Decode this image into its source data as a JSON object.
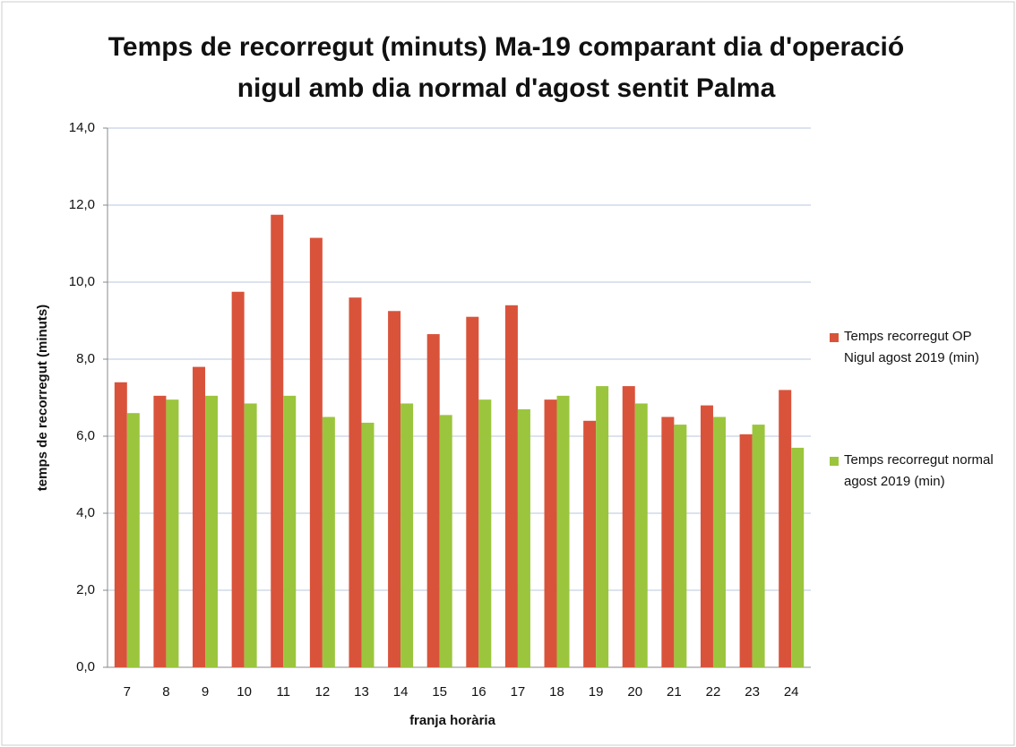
{
  "chart_data": {
    "type": "bar",
    "title": "Temps de recorregut (minuts) Ma-19 comparant dia d'operació nigul amb dia normal d'agost sentit Palma",
    "x_label": "franja horària",
    "y_label": "temps de recorregut (minuts)",
    "categories": [
      "7",
      "8",
      "9",
      "10",
      "11",
      "12",
      "13",
      "14",
      "15",
      "16",
      "17",
      "18",
      "19",
      "20",
      "21",
      "22",
      "23",
      "24"
    ],
    "series": [
      {
        "name": "Temps recorregut OP Nigul agost 2019 (min)",
        "color": "#d9533b",
        "values": [
          7.4,
          7.05,
          7.8,
          9.75,
          11.75,
          11.15,
          9.6,
          9.25,
          8.65,
          9.1,
          9.4,
          6.95,
          6.4,
          7.3,
          6.5,
          6.8,
          6.05,
          7.2
        ]
      },
      {
        "name": "Temps recorregut normal agost 2019 (min)",
        "color": "#9bc53d",
        "values": [
          6.6,
          6.95,
          7.05,
          6.85,
          7.05,
          6.5,
          6.35,
          6.85,
          6.55,
          6.95,
          6.7,
          7.05,
          7.3,
          6.85,
          6.3,
          6.5,
          6.3,
          5.7
        ]
      }
    ],
    "ylim": [
      0,
      14
    ],
    "yticks": [
      {
        "value": 0,
        "label": "0,0"
      },
      {
        "value": 2,
        "label": "2,0"
      },
      {
        "value": 4,
        "label": "4,0"
      },
      {
        "value": 6,
        "label": "6,0"
      },
      {
        "value": 8,
        "label": "8,0"
      },
      {
        "value": 10,
        "label": "10,0"
      },
      {
        "value": 12,
        "label": "12,0"
      },
      {
        "value": 14,
        "label": "14,0"
      }
    ],
    "grid": true,
    "legend": "right"
  }
}
